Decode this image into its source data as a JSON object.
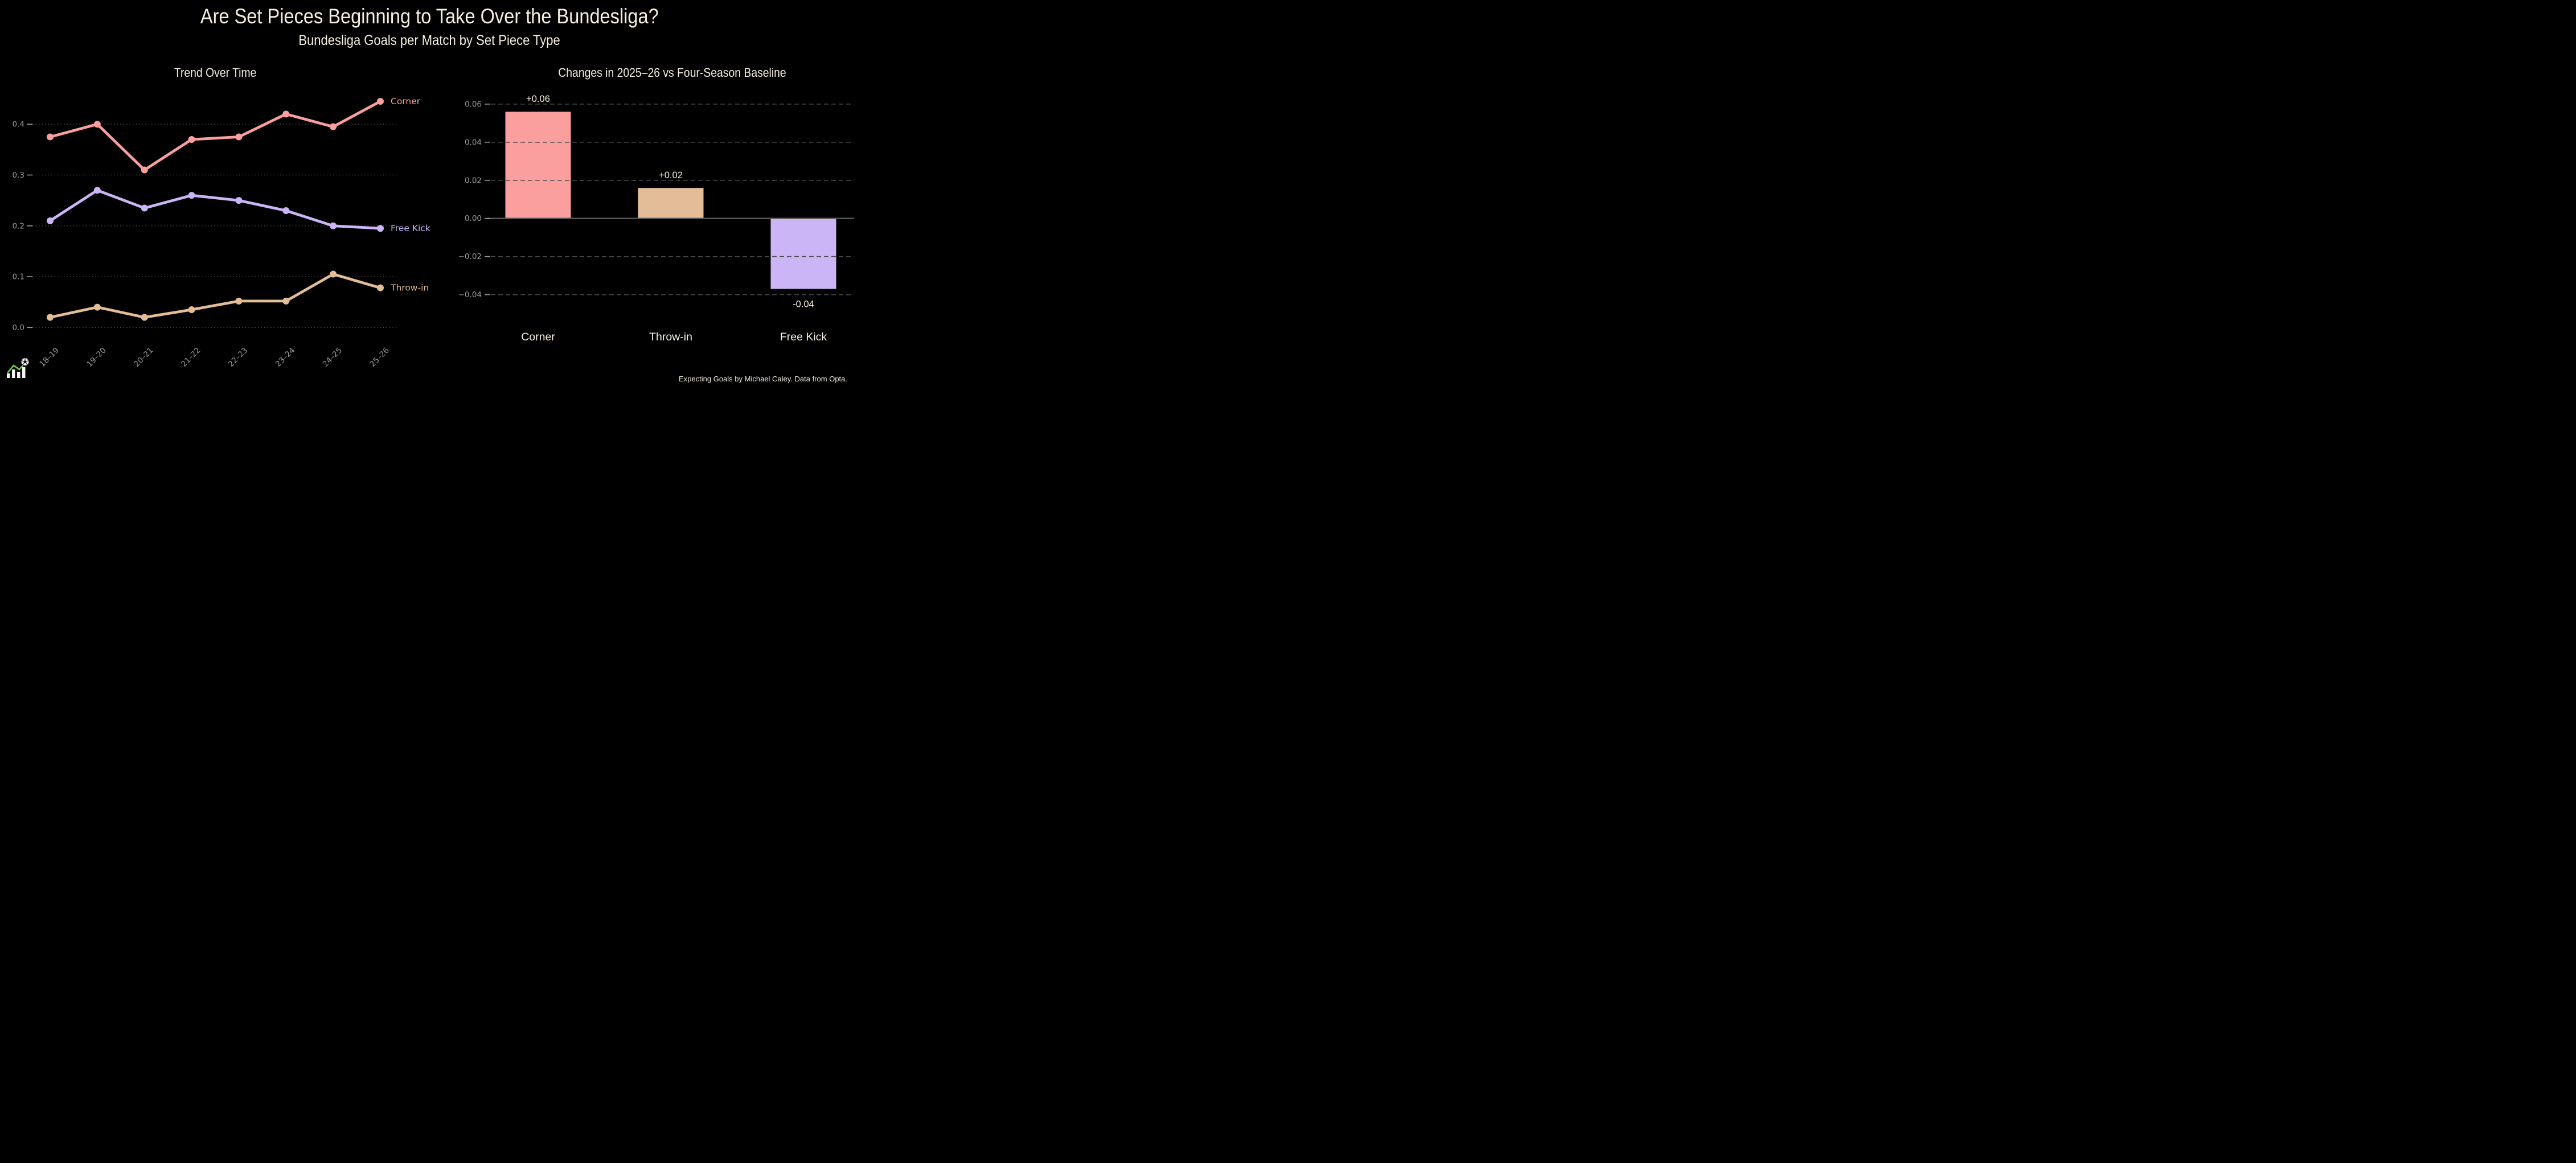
{
  "header": {
    "title": "Are Set Pieces Beginning to Take Over the Bundesliga?",
    "subtitle": "Bundesliga Goals per Match by Set Piece Type"
  },
  "footer": {
    "credit": "Expecting Goals by Michael Caley. Data from Opta."
  },
  "colors": {
    "background": "#000000",
    "text_cream": "#f6efe0",
    "tick_gray": "#9c9c9c",
    "grid": "#4a4a4a",
    "zero_line": "#5a5a5a",
    "corner": "#fb9e9e",
    "throw_in": "#e2bd97",
    "free_kick": "#cbb5f6",
    "logo_green": "#6fc24d",
    "logo_white": "#f4f4f4"
  },
  "chart_data": [
    {
      "type": "line",
      "title": "Trend Over Time",
      "categories": [
        "18–19",
        "19–20",
        "20–21",
        "21–22",
        "22–23",
        "23–24",
        "24–25",
        "25–26"
      ],
      "series": [
        {
          "name": "Corner",
          "color_key": "corner",
          "values": [
            0.375,
            0.4,
            0.31,
            0.37,
            0.375,
            0.42,
            0.395,
            0.445
          ]
        },
        {
          "name": "Free Kick",
          "color_key": "free_kick",
          "values": [
            0.21,
            0.27,
            0.235,
            0.26,
            0.25,
            0.23,
            0.2,
            0.195
          ]
        },
        {
          "name": "Throw-in",
          "color_key": "throw_in",
          "values": [
            0.02,
            0.04,
            0.02,
            0.035,
            0.052,
            0.052,
            0.105,
            0.078
          ]
        }
      ],
      "yticks": [
        0.0,
        0.1,
        0.2,
        0.3,
        0.4
      ],
      "ylim": [
        0,
        0.47
      ],
      "grid": "dotted-horizontal",
      "legend_position": "end-of-line-labels"
    },
    {
      "type": "bar",
      "title": "Changes in 2025–26 vs Four-Season Baseline",
      "categories": [
        "Corner",
        "Throw-in",
        "Free Kick"
      ],
      "values": [
        0.056,
        0.016,
        -0.037
      ],
      "labels": [
        "+0.06",
        "+0.02",
        "-0.04"
      ],
      "color_keys": [
        "corner",
        "throw_in",
        "free_kick"
      ],
      "yticks": [
        0.06,
        0.04,
        0.02,
        0.0,
        -0.02,
        -0.04
      ],
      "ytick_labels": [
        "0.06",
        "0.04",
        "0.02",
        "0.00",
        "−0.02",
        "−0.04"
      ],
      "ylim": [
        -0.05,
        0.07
      ],
      "grid": "dashed-horizontal",
      "zero_line": true
    }
  ]
}
